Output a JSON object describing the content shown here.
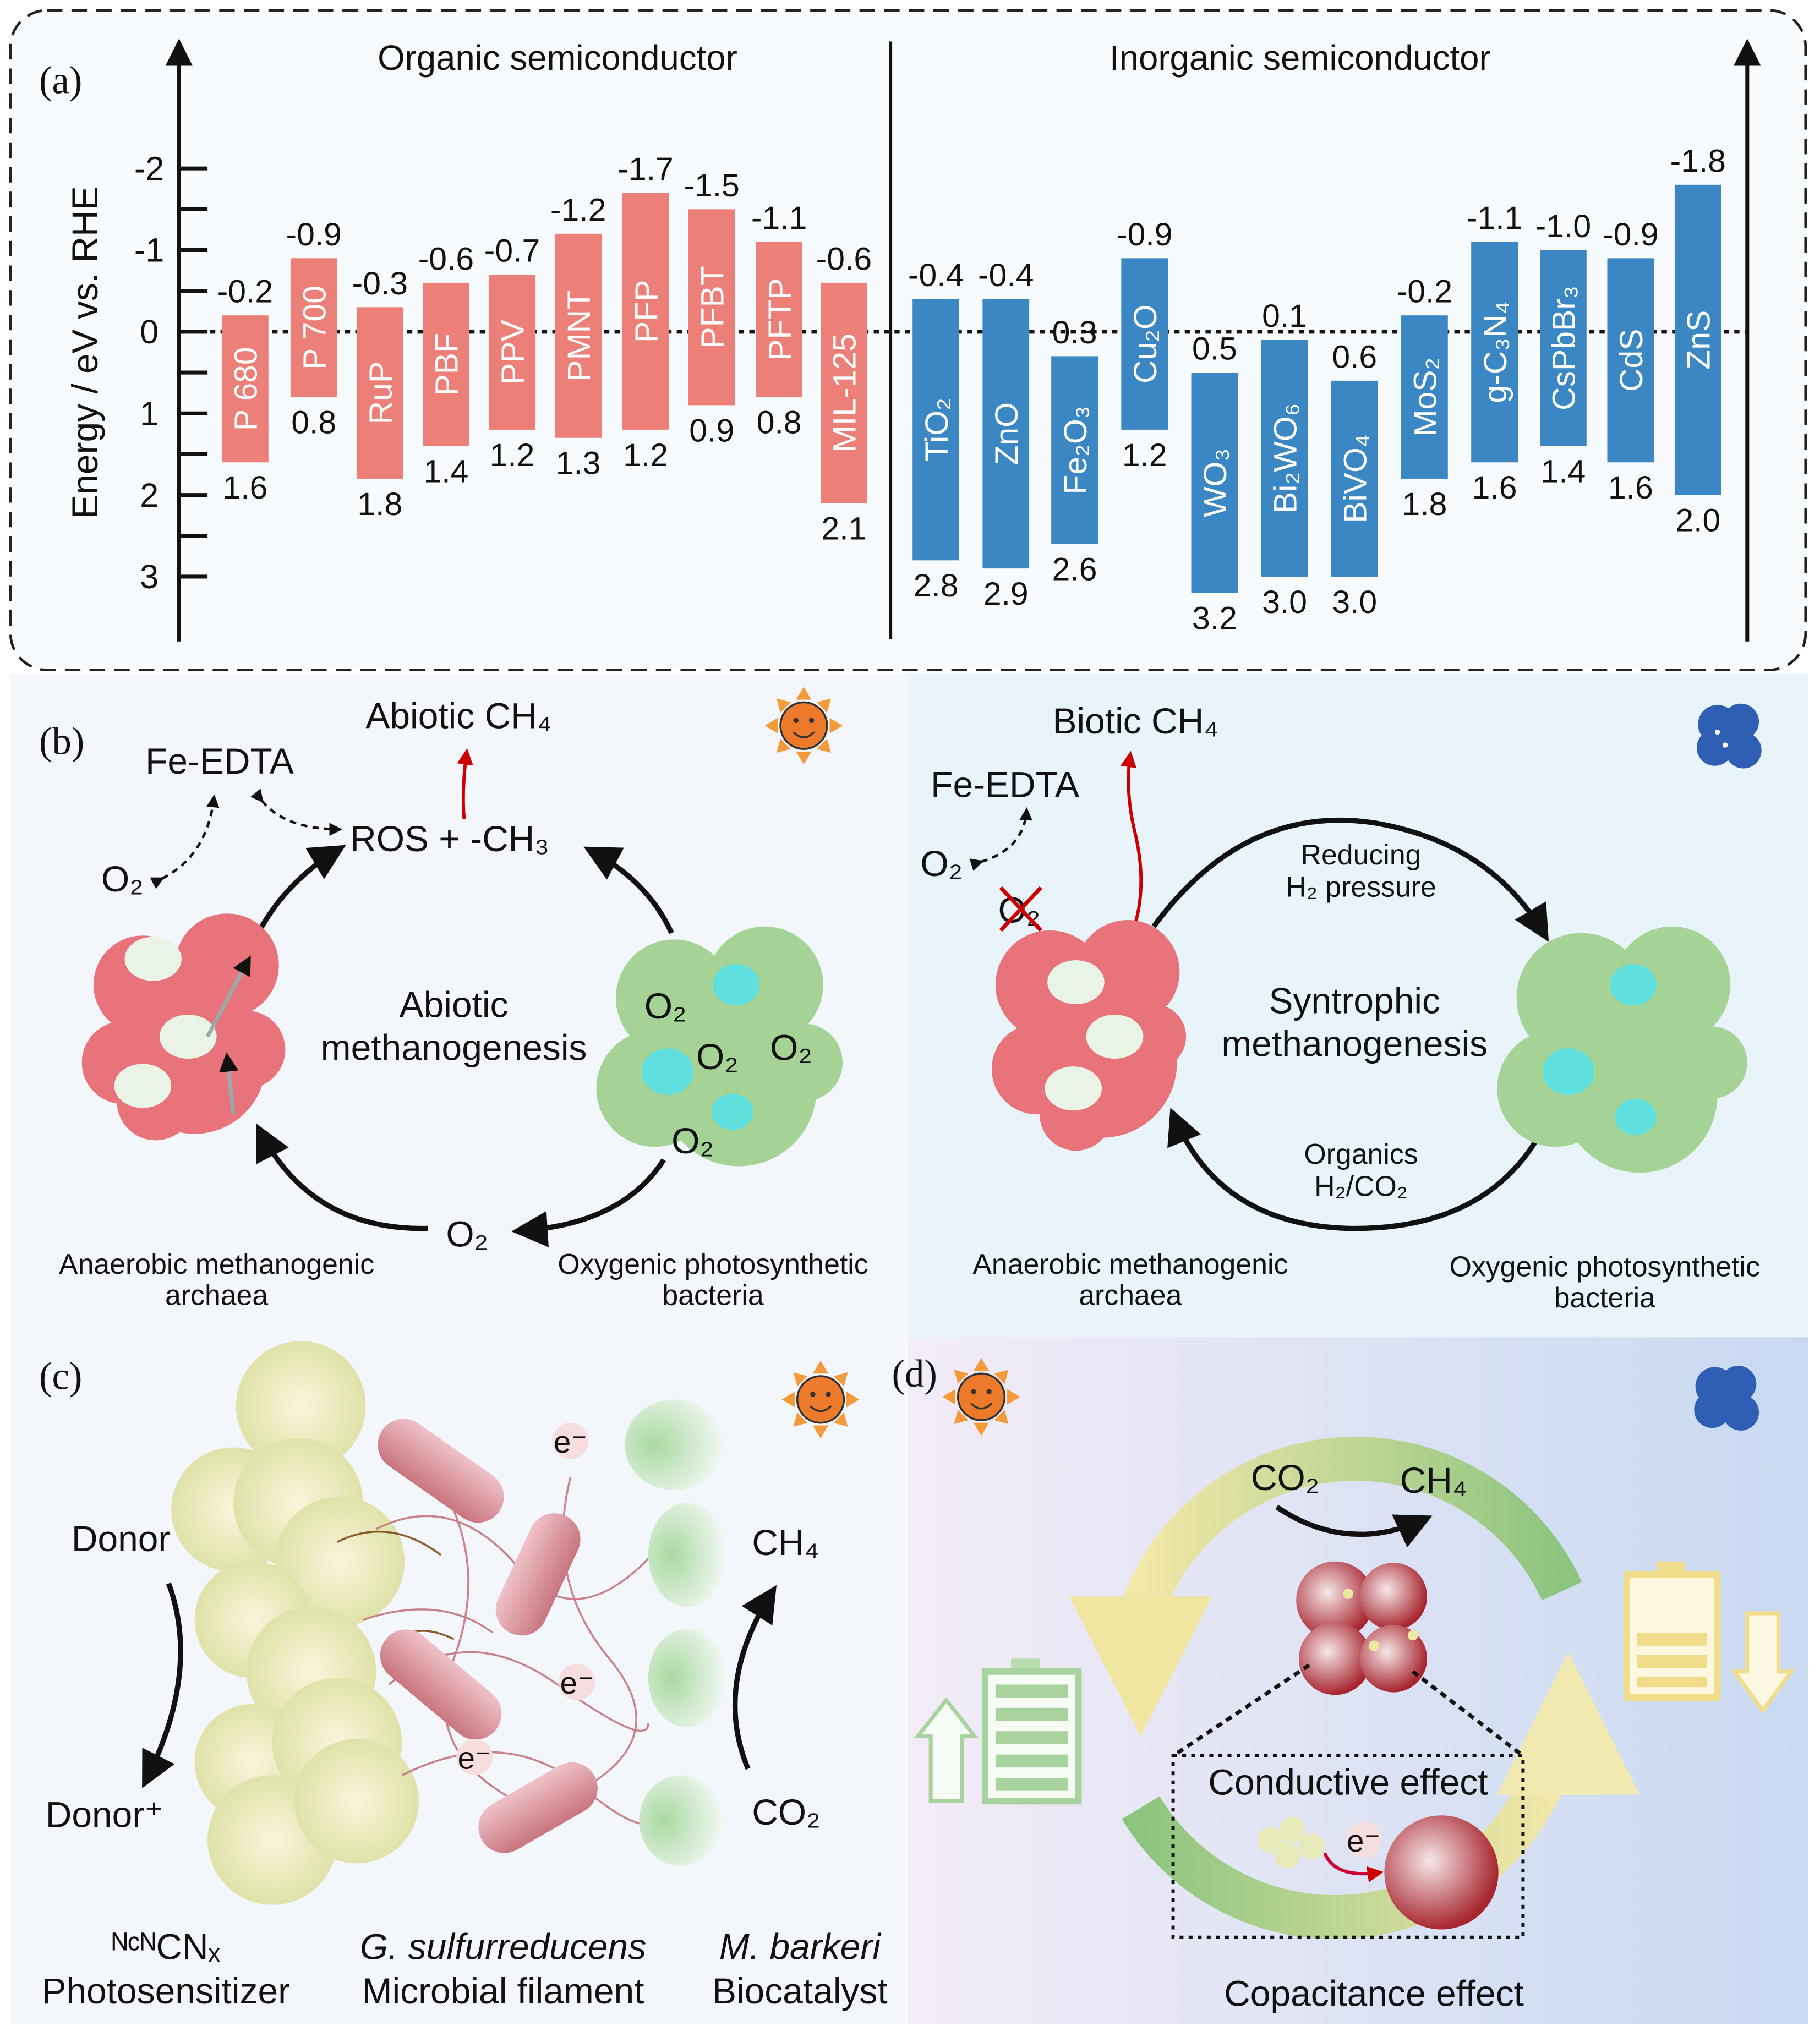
{
  "panel_a": {
    "label": "(a)",
    "organic_title": "Organic semiconductor",
    "inorganic_title": "Inorganic semiconductor",
    "colors": {
      "organic": "#ec8079",
      "inorganic": "#3a87c4"
    }
  },
  "chart_data": {
    "type": "bar",
    "subtype": "floating band-edge bars (conduction band top, valence band bottom)",
    "ylabel": "Energy / eV vs. RHE",
    "ylim": [
      3.5,
      -2.5
    ],
    "y_inverted": true,
    "yticks": [
      -2,
      -1,
      0,
      1,
      2,
      3
    ],
    "reference_line": {
      "y": 0,
      "style": "dotted"
    },
    "groups": [
      {
        "name": "Organic semiconductor",
        "color": "#ec8079",
        "items": [
          {
            "name": "P 680",
            "cb": -0.2,
            "vb": 1.6
          },
          {
            "name": "P 700",
            "cb": -0.9,
            "vb": 0.8
          },
          {
            "name": "RuP",
            "cb": -0.3,
            "vb": 1.8
          },
          {
            "name": "PBF",
            "cb": -0.6,
            "vb": 1.4
          },
          {
            "name": "PPV",
            "cb": -0.7,
            "vb": 1.2
          },
          {
            "name": "PMNT",
            "cb": -1.2,
            "vb": 1.3
          },
          {
            "name": "PFP",
            "cb": -1.7,
            "vb": 1.2
          },
          {
            "name": "PFBT",
            "cb": -1.5,
            "vb": 0.9
          },
          {
            "name": "PFTP",
            "cb": -1.1,
            "vb": 0.8
          },
          {
            "name": "MIL-125",
            "cb": -0.6,
            "vb": 2.1
          }
        ]
      },
      {
        "name": "Inorganic semiconductor",
        "color": "#3a87c4",
        "items": [
          {
            "name": "TiO₂",
            "cb": -0.4,
            "vb": 2.8
          },
          {
            "name": "ZnO",
            "cb": -0.4,
            "vb": 2.9
          },
          {
            "name": "Fe₂O₃",
            "cb": 0.3,
            "vb": 2.6
          },
          {
            "name": "Cu₂O",
            "cb": -0.9,
            "vb": 1.2
          },
          {
            "name": "WO₃",
            "cb": 0.5,
            "vb": 3.2
          },
          {
            "name": "Bi₂WO₆",
            "cb": 0.1,
            "vb": 3.0
          },
          {
            "name": "BiVO₄",
            "cb": 0.6,
            "vb": 3.0
          },
          {
            "name": "MoS₂",
            "cb": -0.2,
            "vb": 1.8
          },
          {
            "name": "g-C₃N₄",
            "cb": -1.1,
            "vb": 1.6
          },
          {
            "name": "CsPbBr₃",
            "cb": -1.0,
            "vb": 1.4
          },
          {
            "name": "CdS",
            "cb": -0.9,
            "vb": 1.6
          },
          {
            "name": "ZnS",
            "cb": -1.8,
            "vb": 2.0
          }
        ]
      }
    ]
  },
  "panel_b": {
    "label": "(b)",
    "left": {
      "product": "Abiotic CH₄",
      "fe_edta": "Fe-EDTA",
      "ros": "ROS + -CH₃",
      "o2": "O₂",
      "center_line1": "Abiotic",
      "center_line2": "methanogenesis",
      "archaea_line1": "Anaerobic methanogenic",
      "archaea_line2": "archaea",
      "bacteria_line1": "Oxygenic photosynthetic",
      "bacteria_line2": "bacteria",
      "icon": "sun-icon"
    },
    "right": {
      "product": "Biotic CH₄",
      "fe_edta": "Fe-EDTA",
      "o2": "O₂",
      "o2_blocked": "O₂",
      "top_arrow_line1": "Reducing",
      "top_arrow_line2": "H₂ pressure",
      "center_line1": "Syntrophic",
      "center_line2": "methanogenesis",
      "bottom_arrow_line1": "Organics",
      "bottom_arrow_line2": "H₂/CO₂",
      "archaea_line1": "Anaerobic methanogenic",
      "archaea_line2": "archaea",
      "bacteria_line1": "Oxygenic photosynthetic",
      "bacteria_line2": "bacteria",
      "icon": "moon-icon"
    }
  },
  "panel_c": {
    "label": "(c)",
    "donor": "Donor",
    "donor_plus": "Donor⁺",
    "ch4": "CH₄",
    "co2": "CO₂",
    "electron": "e⁻",
    "caption1_line1": "ᴺᶜᴺCNₓ",
    "caption1_line2": "Photosensitizer",
    "caption2_line1": "G. sulfurreducens",
    "caption2_line2": "Microbial filament",
    "caption3_line1": "M. barkeri",
    "caption3_line2": "Biocatalyst",
    "icon": "sun-icon"
  },
  "panel_d": {
    "label": "(d)",
    "co2": "CO₂",
    "ch4": "CH₄",
    "conductive": "Conductive effect",
    "electron": "e⁻",
    "capacitance": "Copacitance effect",
    "icons": [
      "sun-icon",
      "moon-icon",
      "battery-charging-icon",
      "battery-discharging-icon"
    ]
  }
}
